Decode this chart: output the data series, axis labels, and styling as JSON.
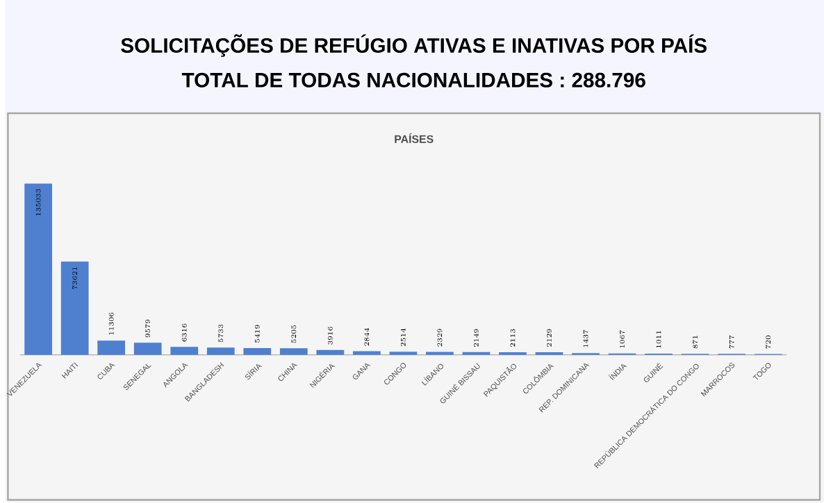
{
  "chart_data": {
    "type": "bar",
    "title": "SOLICITAÇÕES DE REFÚGIO ATIVAS E INATIVAS  POR PAÍS",
    "subtitle": "TOTAL DE TODAS NACIONALIDADES : 288.796",
    "xlabel": "PAÍSES",
    "categories": [
      "VENEZUELA",
      "HAITI",
      "CUBA",
      "SENEGAL",
      "ANGOLA",
      "BANGLADESH",
      "SÍRIA",
      "CHINA",
      "NIGÉRIA",
      "GANA",
      "CONGO",
      "LÍBANO",
      "GUINÉ BISSAU",
      "PAQUISTÃO",
      "COLÔMBIA",
      "REP. DOMINICANA",
      "ÍNDIA",
      "GUINÉ",
      "REPÚBLICA DEMOCRÁTICA DO CONGO",
      "MARROCOS",
      "TOGO"
    ],
    "values": [
      135033,
      73621,
      11306,
      9579,
      6316,
      5733,
      5419,
      5205,
      3916,
      2844,
      2514,
      2329,
      2149,
      2113,
      2129,
      1437,
      1067,
      1011,
      871,
      777,
      720
    ],
    "color": "#4f7fcf",
    "data_labels": true
  }
}
